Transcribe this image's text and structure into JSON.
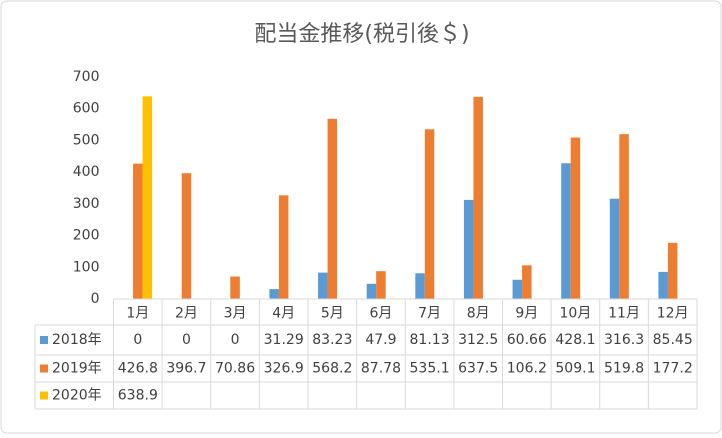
{
  "chart_data": {
    "type": "bar",
    "title": "配当金推移(税引後＄)",
    "categories": [
      "1月",
      "2月",
      "3月",
      "4月",
      "5月",
      "6月",
      "7月",
      "8月",
      "9月",
      "10月",
      "11月",
      "12月"
    ],
    "series": [
      {
        "name": "2018年",
        "color": "#5b9bd5",
        "values": [
          0,
          0,
          0,
          31.29,
          83.23,
          47.9,
          81.13,
          312.5,
          60.66,
          428.1,
          316.3,
          85.45
        ]
      },
      {
        "name": "2019年",
        "color": "#ed7d31",
        "values": [
          426.8,
          396.7,
          70.86,
          326.9,
          568.2,
          87.78,
          535.1,
          637.5,
          106.2,
          509.1,
          519.8,
          177.2
        ]
      },
      {
        "name": "2020年",
        "color": "#ffc000",
        "values": [
          638.9,
          null,
          null,
          null,
          null,
          null,
          null,
          null,
          null,
          null,
          null,
          null
        ]
      }
    ],
    "ylim": [
      0,
      700
    ],
    "yticks": [
      0,
      100,
      200,
      300,
      400,
      500,
      600,
      700
    ],
    "grid": false
  }
}
